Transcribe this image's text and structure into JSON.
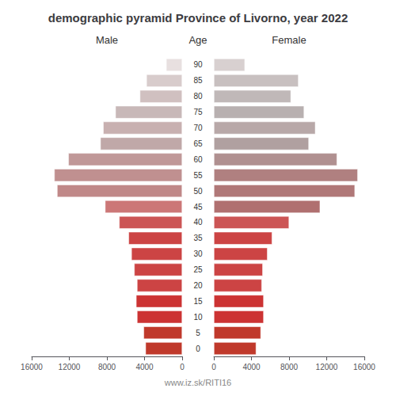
{
  "chart_data": {
    "type": "bar",
    "orientation": "horizontal",
    "title": "demographic pyramid Province of Livorno, year 2022",
    "ylabel": "Age",
    "annotations": [
      "www.iz.sk/RITI16"
    ],
    "categories": [
      "0",
      "5",
      "10",
      "15",
      "20",
      "25",
      "30",
      "35",
      "40",
      "45",
      "50",
      "55",
      "60",
      "65",
      "70",
      "75",
      "80",
      "85",
      "90"
    ],
    "series": [
      {
        "name": "Male",
        "values": [
          3900,
          4100,
          4800,
          4900,
          4800,
          5100,
          5400,
          5700,
          6700,
          8200,
          13300,
          13600,
          12100,
          8700,
          8400,
          7100,
          4500,
          3800,
          1700
        ],
        "colors": [
          "#c0392b",
          "#c0392b",
          "#cc3333",
          "#cc3333",
          "#cc4444",
          "#cc4444",
          "#cc4444",
          "#cc4444",
          "#cc5555",
          "#cc7777",
          "#c08888",
          "#c09090",
          "#c09898",
          "#c0a8a8",
          "#c8b0b0",
          "#c8b8b8",
          "#d0c0c0",
          "#d8cccc",
          "#e8e0e0"
        ]
      },
      {
        "name": "Female",
        "values": [
          4500,
          5000,
          5300,
          5300,
          5100,
          5200,
          5700,
          6200,
          8000,
          11300,
          15000,
          15300,
          13100,
          10100,
          10800,
          9600,
          8200,
          9000,
          3300
        ],
        "colors": [
          "#c0392b",
          "#c0392b",
          "#cc3333",
          "#cc3333",
          "#cc4444",
          "#cc4444",
          "#cc4444",
          "#cc4444",
          "#cc5555",
          "#b07070",
          "#b07878",
          "#b08080",
          "#b09090",
          "#b0a0a0",
          "#b8a8a8",
          "#b8b0b0",
          "#c0b8b8",
          "#c8c0c0",
          "#d8d0d0"
        ]
      }
    ],
    "xlim": [
      0,
      16000
    ],
    "xticks": [
      0,
      4000,
      8000,
      12000,
      16000
    ],
    "grid": false
  }
}
